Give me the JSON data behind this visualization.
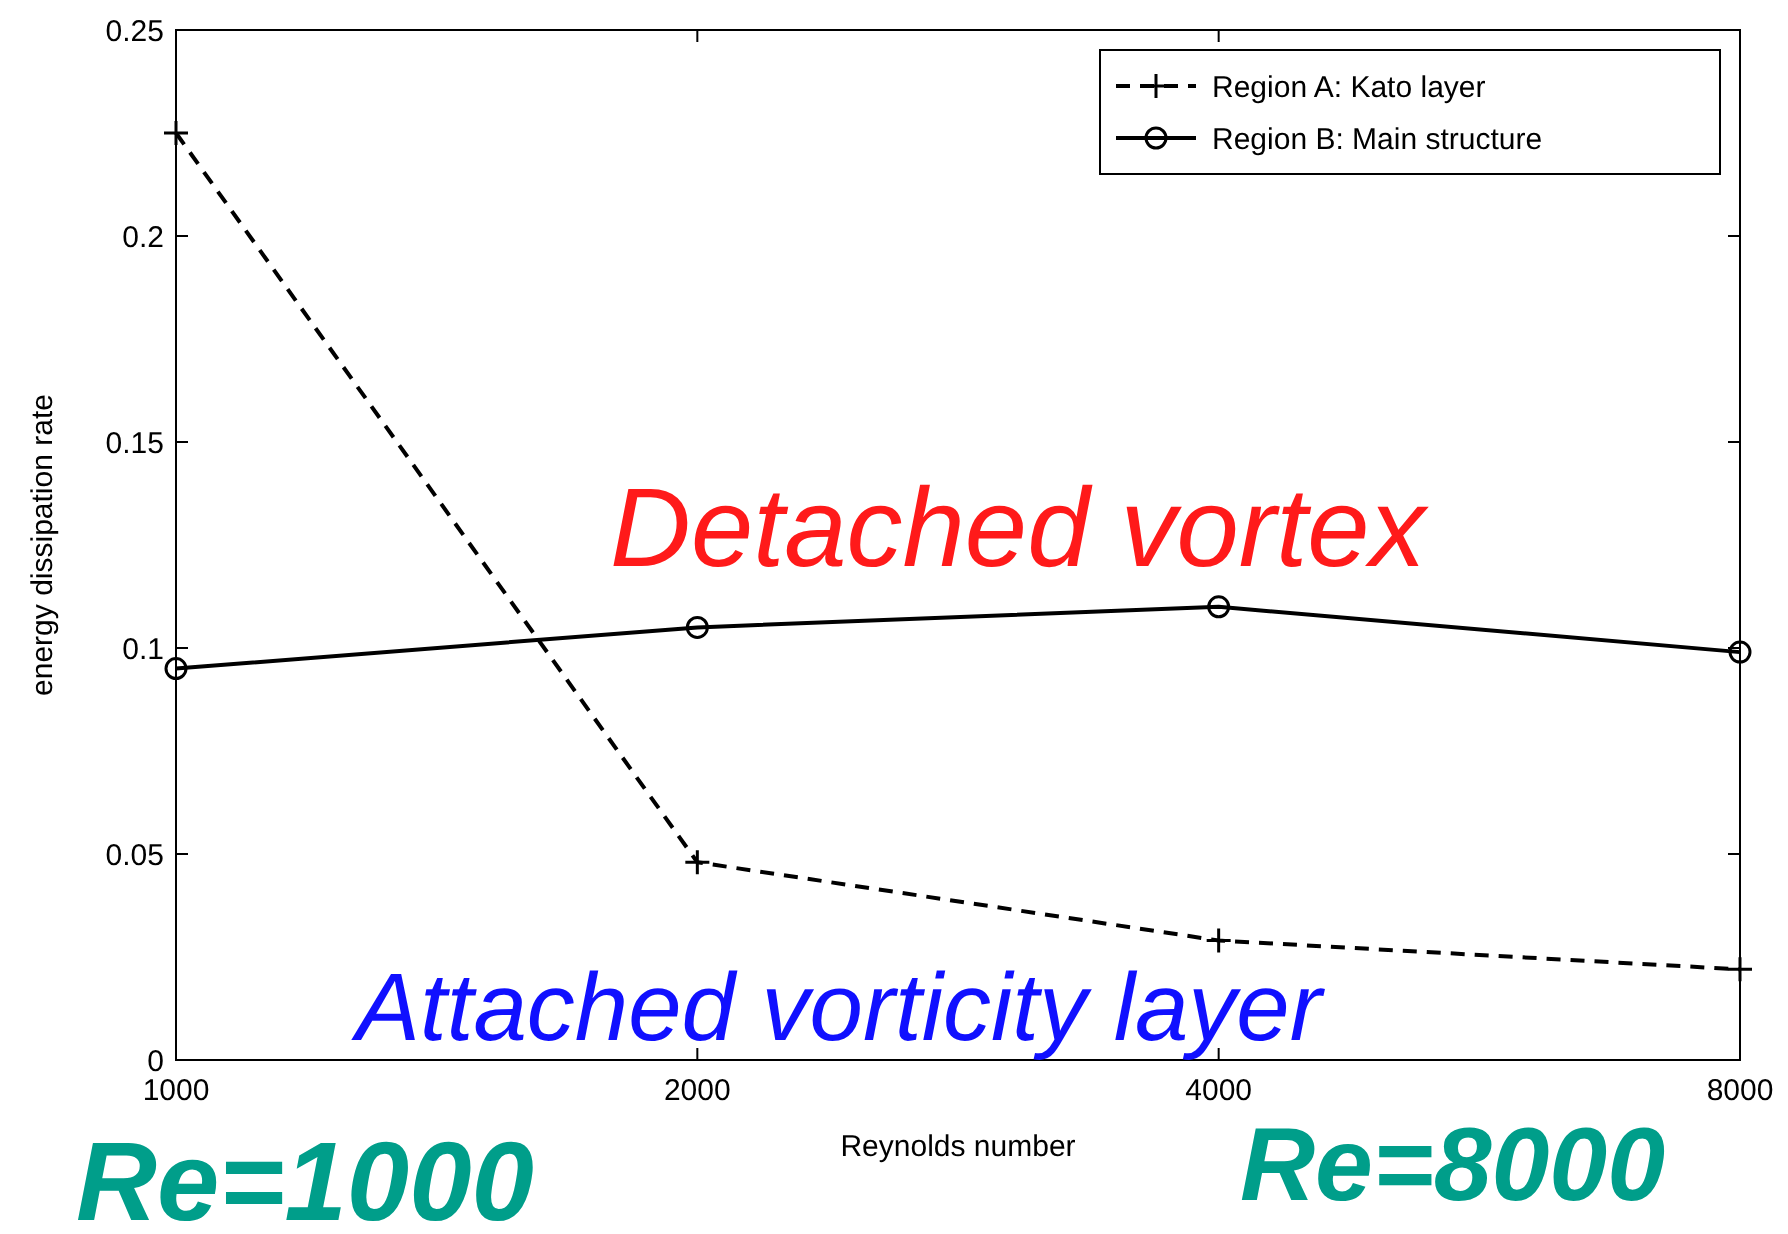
{
  "chart_data": {
    "type": "line",
    "xlabel": "Reynolds number",
    "ylabel": "energy dissipation rate",
    "categories": [
      "1000",
      "2000",
      "4000",
      "8000"
    ],
    "ylim": [
      0,
      0.25
    ],
    "yticks": [
      0,
      0.05,
      0.1,
      0.15,
      0.2,
      0.25
    ],
    "grid": false,
    "legend": "top right",
    "series": [
      {
        "name": "Region A: Kato layer",
        "color": "#000000",
        "values": [
          0.225,
          0.048,
          0.029,
          0.022
        ],
        "marker": "cross",
        "line_style": "dashed"
      },
      {
        "name": "Region B: Main structure",
        "color": "#000000",
        "values": [
          0.095,
          0.105,
          0.11,
          0.099
        ],
        "marker": "circle",
        "line_style": "solid"
      }
    ],
    "annotations": [
      "Detached vortex",
      "Attached vorticity layer",
      "Re=1000",
      "Re=8000"
    ]
  }
}
